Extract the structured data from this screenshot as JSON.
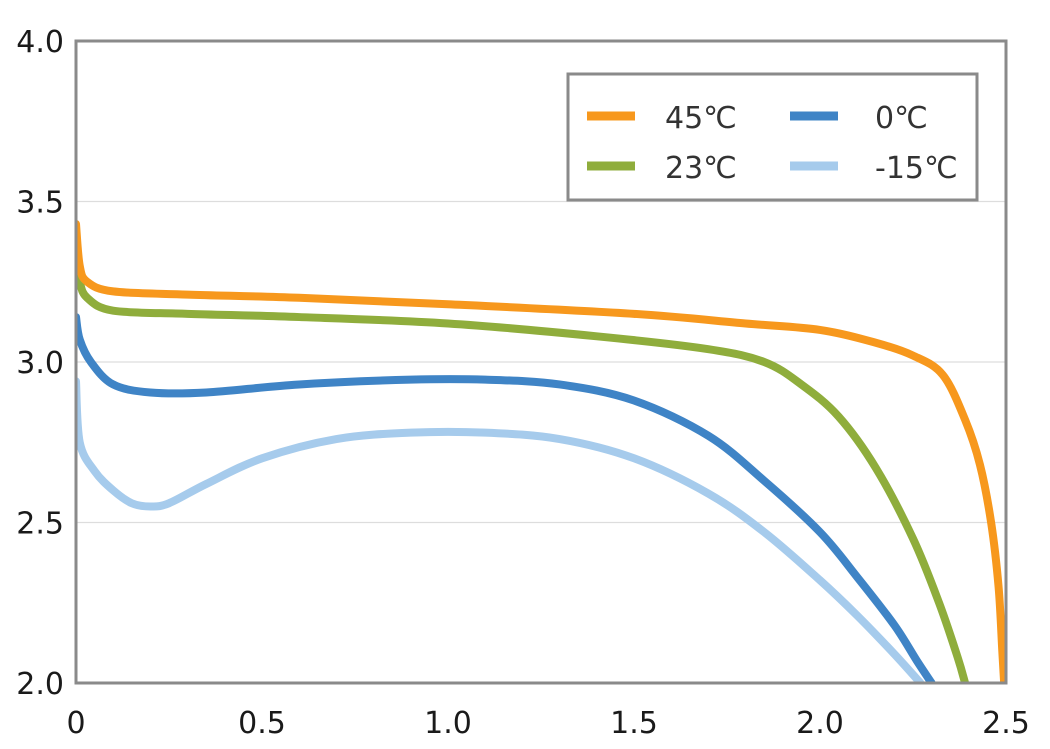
{
  "chart_data": {
    "type": "line",
    "title": "",
    "xlabel": "",
    "ylabel": "",
    "xlim": [
      0,
      2.5
    ],
    "ylim": [
      2.0,
      4.0
    ],
    "x_ticks": [
      "0",
      "0.5",
      "1.0",
      "1.5",
      "2.0",
      "2.5"
    ],
    "y_ticks": [
      "2.0",
      "2.5",
      "3.0",
      "3.5",
      "4.0"
    ],
    "grid": "horizontal",
    "legend_position": "top-right",
    "series": [
      {
        "name": "45℃",
        "color": "#F7981D",
        "points": [
          [
            0.0,
            3.43
          ],
          [
            0.01,
            3.3
          ],
          [
            0.03,
            3.25
          ],
          [
            0.1,
            3.22
          ],
          [
            0.3,
            3.21
          ],
          [
            0.6,
            3.2
          ],
          [
            1.0,
            3.18
          ],
          [
            1.5,
            3.15
          ],
          [
            1.8,
            3.12
          ],
          [
            2.0,
            3.1
          ],
          [
            2.15,
            3.06
          ],
          [
            2.25,
            3.02
          ],
          [
            2.33,
            2.96
          ],
          [
            2.39,
            2.82
          ],
          [
            2.43,
            2.68
          ],
          [
            2.46,
            2.5
          ],
          [
            2.48,
            2.3
          ],
          [
            2.49,
            2.1
          ],
          [
            2.495,
            2.0
          ]
        ]
      },
      {
        "name": "23℃",
        "color": "#8FAD3C",
        "points": [
          [
            0.0,
            3.32
          ],
          [
            0.01,
            3.25
          ],
          [
            0.03,
            3.2
          ],
          [
            0.1,
            3.16
          ],
          [
            0.3,
            3.15
          ],
          [
            0.6,
            3.14
          ],
          [
            1.0,
            3.12
          ],
          [
            1.4,
            3.08
          ],
          [
            1.7,
            3.04
          ],
          [
            1.85,
            3.0
          ],
          [
            1.95,
            2.93
          ],
          [
            2.05,
            2.83
          ],
          [
            2.15,
            2.67
          ],
          [
            2.25,
            2.45
          ],
          [
            2.32,
            2.25
          ],
          [
            2.37,
            2.08
          ],
          [
            2.39,
            2.0
          ]
        ]
      },
      {
        "name": "0℃",
        "color": "#3F84C6",
        "points": [
          [
            0.0,
            3.14
          ],
          [
            0.01,
            3.07
          ],
          [
            0.04,
            3.0
          ],
          [
            0.1,
            2.93
          ],
          [
            0.2,
            2.905
          ],
          [
            0.35,
            2.905
          ],
          [
            0.6,
            2.93
          ],
          [
            0.9,
            2.945
          ],
          [
            1.1,
            2.945
          ],
          [
            1.3,
            2.93
          ],
          [
            1.5,
            2.88
          ],
          [
            1.7,
            2.77
          ],
          [
            1.85,
            2.63
          ],
          [
            2.0,
            2.47
          ],
          [
            2.1,
            2.33
          ],
          [
            2.2,
            2.18
          ],
          [
            2.26,
            2.07
          ],
          [
            2.3,
            2.0
          ]
        ]
      },
      {
        "name": "-15℃",
        "color": "#A6CBEC",
        "points": [
          [
            0.0,
            2.94
          ],
          [
            0.01,
            2.75
          ],
          [
            0.05,
            2.66
          ],
          [
            0.1,
            2.6
          ],
          [
            0.15,
            2.56
          ],
          [
            0.2,
            2.55
          ],
          [
            0.25,
            2.56
          ],
          [
            0.35,
            2.62
          ],
          [
            0.5,
            2.7
          ],
          [
            0.7,
            2.76
          ],
          [
            0.9,
            2.78
          ],
          [
            1.1,
            2.78
          ],
          [
            1.3,
            2.76
          ],
          [
            1.5,
            2.7
          ],
          [
            1.7,
            2.59
          ],
          [
            1.85,
            2.47
          ],
          [
            2.0,
            2.32
          ],
          [
            2.1,
            2.21
          ],
          [
            2.2,
            2.09
          ],
          [
            2.27,
            2.0
          ]
        ]
      }
    ]
  }
}
